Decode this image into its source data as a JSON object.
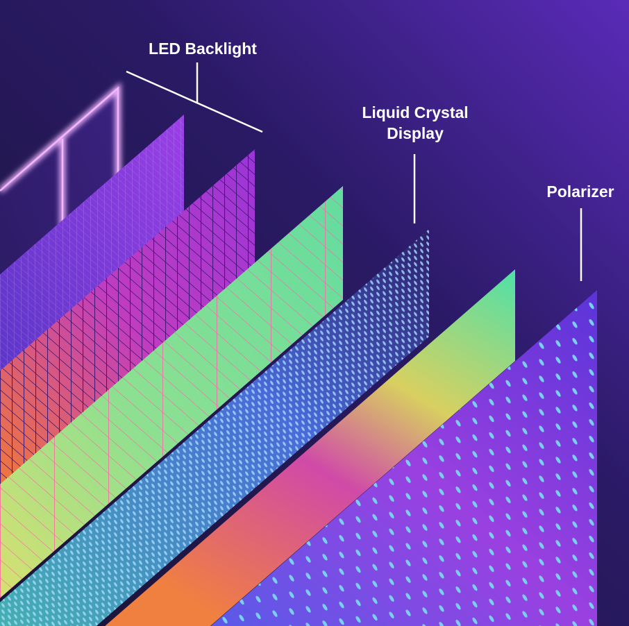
{
  "labels": {
    "led_backlight": "LED Backlight",
    "lcd_line1": "Liquid Crystal",
    "lcd_line2": "Display",
    "polarizer": "Polarizer"
  },
  "colors": {
    "background_dark": "#1c1638",
    "background_light": "#5a2bb8",
    "glow_pink": "#f3b6ff",
    "grid_purple": "#a13be0",
    "green_layer": "#63dca0",
    "pink_lines": "#ff5fa8",
    "dots_blue": "#7fc4ff",
    "polarizer_purple": "#6a3ee0"
  },
  "layers": [
    "LED Backlight",
    "Liquid Crystal Display",
    "Polarizer"
  ]
}
